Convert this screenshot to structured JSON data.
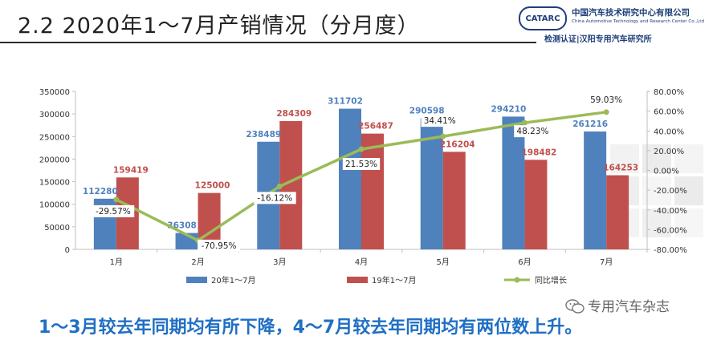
{
  "header": {
    "title": "2.2 2020年1～7月产销情况（分月度）"
  },
  "logo": {
    "badge": "CATARC",
    "name_cn": "中国汽车技术研究中心有限公司",
    "name_en": "China Automotive Technology and Research Center Co.,Ltd",
    "subtitle": "检测认证|汉阳专用汽车研究所"
  },
  "footer": {
    "conclusion": "1～3月较去年同期均有所下降，4～7月较去年同期均有两位数上升。"
  },
  "watermark": {
    "text": "专用汽车杂志",
    "icon": "wechat-icon"
  },
  "colors": {
    "series_2020": "#4f81bd",
    "series_2019": "#c0504d",
    "growth_line": "#9bbb59",
    "label_2020": "#4f81bd",
    "label_2019": "#c0504d"
  },
  "chart_data": {
    "type": "bar",
    "categories": [
      "1月",
      "2月",
      "3月",
      "4月",
      "5月",
      "6月",
      "7月"
    ],
    "series": [
      {
        "name": "20年1～7月",
        "values": [
          112280,
          36308,
          238489,
          311702,
          290598,
          294210,
          261216
        ],
        "labels": [
          "112280",
          "36308",
          "238489",
          "311702",
          "290598",
          "294210",
          "261216"
        ]
      },
      {
        "name": "19年1～7月",
        "values": [
          159419,
          125000,
          284309,
          256487,
          216204,
          198482,
          164253
        ],
        "labels": [
          "159419",
          "125000",
          "284309",
          "256487",
          "216204",
          "198482",
          "164253"
        ]
      }
    ],
    "line_series": {
      "name": "同比增长",
      "type": "line",
      "axis": "right",
      "values": [
        -29.57,
        -70.95,
        -16.12,
        21.53,
        34.41,
        48.23,
        59.03
      ],
      "labels": [
        "-29.57%",
        "-70.95%",
        "-16.12%",
        "21.53%",
        "34.41%",
        "48.23%",
        "59.03%"
      ]
    },
    "left_axis": {
      "ylim": [
        0,
        350000
      ],
      "ticks": [
        "0",
        "50000",
        "100000",
        "150000",
        "200000",
        "250000",
        "300000",
        "350000"
      ]
    },
    "right_axis": {
      "ylim": [
        -80,
        80
      ],
      "ticks": [
        "-80.00%",
        "-60.00%",
        "-40.00%",
        "-20.00%",
        "0.00%",
        "20.00%",
        "40.00%",
        "60.00%",
        "80.00%"
      ]
    },
    "legend_position": "bottom",
    "grid": false
  }
}
